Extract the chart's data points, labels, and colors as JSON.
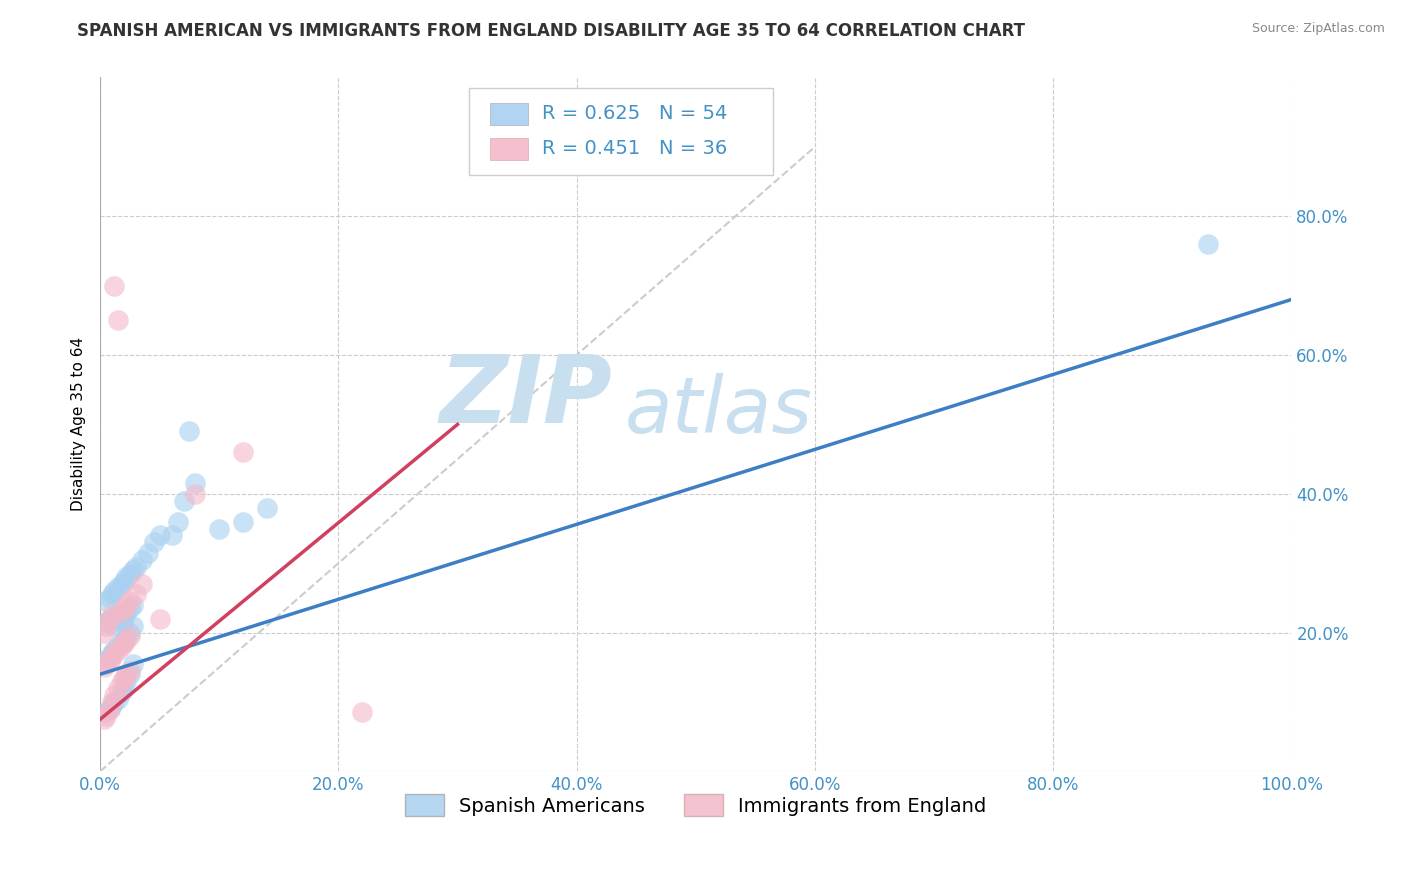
{
  "title": "SPANISH AMERICAN VS IMMIGRANTS FROM ENGLAND DISABILITY AGE 35 TO 64 CORRELATION CHART",
  "source": "Source: ZipAtlas.com",
  "ylabel": "Disability Age 35 to 64",
  "xlim": [
    0.0,
    1.0
  ],
  "ylim": [
    0.0,
    1.0
  ],
  "xticks": [
    0.0,
    0.2,
    0.4,
    0.6,
    0.8,
    1.0
  ],
  "yticks": [
    0.2,
    0.4,
    0.6,
    0.8
  ],
  "xtick_labels": [
    "0.0%",
    "20.0%",
    "40.0%",
    "60.0%",
    "80.0%",
    "100.0%"
  ],
  "ytick_labels": [
    "20.0%",
    "40.0%",
    "60.0%",
    "80.0%"
  ],
  "grid_color": "#cccccc",
  "blue_color": "#a8d0f0",
  "pink_color": "#f4b8c8",
  "blue_line_color": "#3d7fc4",
  "pink_line_color": "#d04060",
  "tick_color": "#4292c6",
  "R_blue": 0.625,
  "N_blue": 54,
  "R_pink": 0.451,
  "N_pink": 36,
  "legend_label_blue": "Spanish Americans",
  "legend_label_pink": "Immigrants from England",
  "blue_line_x0": 0.0,
  "blue_line_y0": 0.14,
  "blue_line_x1": 1.0,
  "blue_line_y1": 0.68,
  "pink_line_x0": 0.0,
  "pink_line_y0": 0.075,
  "pink_line_x1": 0.3,
  "pink_line_y1": 0.5,
  "blue_scatter_x": [
    0.005,
    0.008,
    0.01,
    0.012,
    0.015,
    0.018,
    0.02,
    0.022,
    0.025,
    0.028,
    0.005,
    0.008,
    0.01,
    0.012,
    0.015,
    0.018,
    0.02,
    0.022,
    0.025,
    0.028,
    0.005,
    0.008,
    0.01,
    0.012,
    0.015,
    0.018,
    0.02,
    0.022,
    0.025,
    0.028,
    0.005,
    0.008,
    0.01,
    0.012,
    0.015,
    0.018,
    0.02,
    0.022,
    0.025,
    0.028,
    0.03,
    0.035,
    0.04,
    0.045,
    0.05,
    0.06,
    0.065,
    0.07,
    0.08,
    0.1,
    0.12,
    0.14,
    0.93,
    0.075
  ],
  "blue_scatter_y": [
    0.085,
    0.09,
    0.095,
    0.1,
    0.105,
    0.115,
    0.12,
    0.13,
    0.14,
    0.155,
    0.16,
    0.165,
    0.17,
    0.175,
    0.18,
    0.185,
    0.19,
    0.195,
    0.2,
    0.21,
    0.215,
    0.22,
    0.215,
    0.21,
    0.225,
    0.215,
    0.22,
    0.23,
    0.235,
    0.24,
    0.245,
    0.25,
    0.255,
    0.26,
    0.265,
    0.27,
    0.275,
    0.28,
    0.285,
    0.29,
    0.295,
    0.305,
    0.315,
    0.33,
    0.34,
    0.34,
    0.36,
    0.39,
    0.415,
    0.35,
    0.36,
    0.38,
    0.76,
    0.49
  ],
  "pink_scatter_x": [
    0.003,
    0.005,
    0.008,
    0.01,
    0.012,
    0.015,
    0.018,
    0.02,
    0.022,
    0.025,
    0.003,
    0.005,
    0.008,
    0.01,
    0.012,
    0.015,
    0.018,
    0.02,
    0.022,
    0.025,
    0.003,
    0.005,
    0.008,
    0.01,
    0.012,
    0.015,
    0.018,
    0.02,
    0.022,
    0.025,
    0.03,
    0.035,
    0.05,
    0.08,
    0.12,
    0.22
  ],
  "pink_scatter_y": [
    0.075,
    0.08,
    0.09,
    0.1,
    0.11,
    0.12,
    0.13,
    0.135,
    0.14,
    0.145,
    0.15,
    0.155,
    0.16,
    0.165,
    0.17,
    0.175,
    0.18,
    0.185,
    0.19,
    0.195,
    0.2,
    0.21,
    0.22,
    0.225,
    0.7,
    0.65,
    0.23,
    0.235,
    0.24,
    0.245,
    0.255,
    0.27,
    0.22,
    0.4,
    0.46,
    0.085
  ],
  "background_color": "#ffffff",
  "title_fontsize": 12,
  "axis_label_fontsize": 11,
  "tick_fontsize": 12,
  "legend_fontsize": 14,
  "watermark_zip_color": "#c8dff0",
  "watermark_atlas_color": "#c8dff0"
}
